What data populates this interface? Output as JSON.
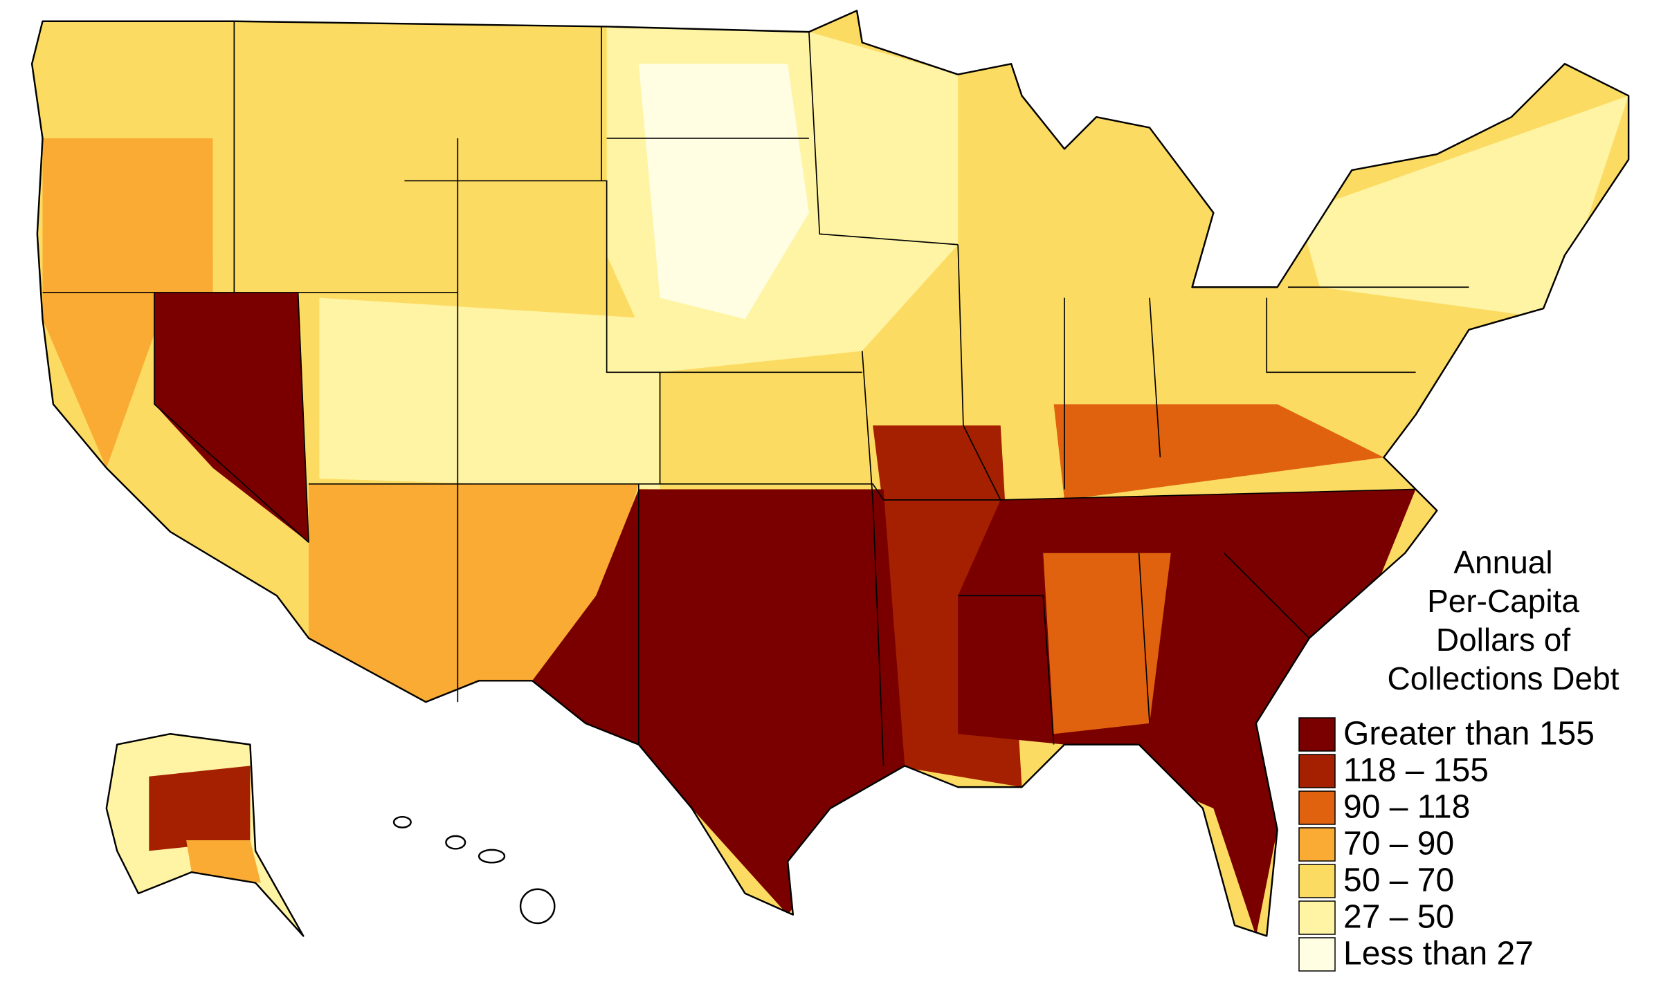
{
  "legend": {
    "title": [
      "Annual",
      "Per-Capita",
      "Dollars of",
      "Collections Debt"
    ],
    "items": [
      {
        "label": "Greater than 155",
        "color": "#7a0000"
      },
      {
        "label": "118 – 155",
        "color": "#a52000"
      },
      {
        "label": "90 – 118",
        "color": "#e0620f"
      },
      {
        "label": "70 – 90",
        "color": "#f9ab33"
      },
      {
        "label": "50 – 70",
        "color": "#fcdb62"
      },
      {
        "label": "27 – 50",
        "color": "#fef4a4"
      },
      {
        "label": "Less than 27",
        "color": "#fffde2"
      }
    ]
  }
}
